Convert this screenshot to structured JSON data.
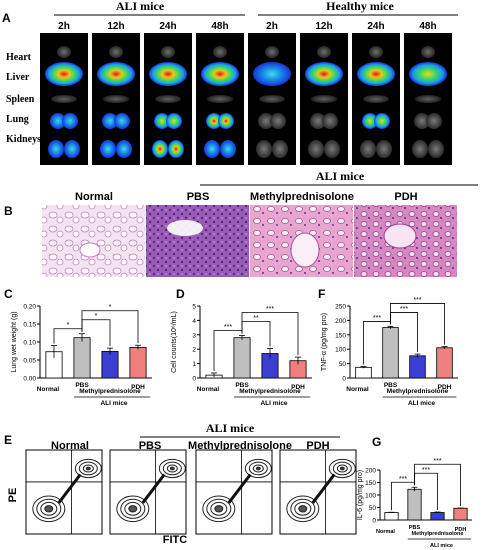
{
  "panel_a": {
    "letter": "A",
    "group_ali": "ALI mice",
    "group_healthy": "Healthy mice",
    "times": [
      "2h",
      "12h",
      "24h",
      "48h",
      "2h",
      "12h",
      "24h",
      "48h"
    ],
    "organs": [
      "Heart",
      "Liver",
      "Spleen",
      "Lung",
      "Kidneys"
    ]
  },
  "panel_b": {
    "letter": "B",
    "labels": [
      "Normal",
      "PBS",
      "Methylprednisolone",
      "PDH"
    ],
    "group": "ALI mice"
  },
  "panel_e": {
    "letter": "E",
    "title": "ALI mice",
    "labels": [
      "Normal",
      "PBS",
      "Methylprednisolone",
      "PDH"
    ],
    "y_axis": "PE",
    "x_axis": "FITC",
    "quadrant_values": [
      "",
      "",
      "",
      ""
    ]
  },
  "chart_data": [
    {
      "panel": "C",
      "type": "bar",
      "categories": [
        "Normal",
        "PBS",
        "Methylprednisolone",
        "PDH"
      ],
      "values": [
        0.073,
        0.112,
        0.074,
        0.085
      ],
      "errors": [
        0.017,
        0.011,
        0.009,
        0.006
      ],
      "colors": [
        "#ffffff",
        "#bfbfbf",
        "#3b3fd1",
        "#f08080"
      ],
      "ylabel": "Lung wet weight (g)",
      "ylim": [
        0,
        0.2
      ],
      "yticks": [
        "0.00",
        "0.05",
        "0.10",
        "0.15",
        "0.20"
      ],
      "group_label": "ALI mice",
      "significance": [
        [
          "Normal",
          "PBS",
          "*"
        ],
        [
          "PBS",
          "Methylprednisolone",
          "*"
        ],
        [
          "PBS",
          "PDH",
          "*"
        ]
      ]
    },
    {
      "panel": "D",
      "type": "bar",
      "categories": [
        "Normal",
        "PBS",
        "Methylprednisolone",
        "PDH"
      ],
      "values": [
        0.2,
        2.8,
        1.7,
        1.2
      ],
      "errors": [
        0.15,
        0.15,
        0.35,
        0.25
      ],
      "colors": [
        "#ffffff",
        "#bfbfbf",
        "#3b3fd1",
        "#f08080"
      ],
      "ylabel": "Cell counts(10⁶/mL)",
      "ylim": [
        0,
        5
      ],
      "yticks": [
        "0",
        "1",
        "2",
        "3",
        "4",
        "5"
      ],
      "group_label": "ALI mice",
      "significance": [
        [
          "Normal",
          "PBS",
          "***"
        ],
        [
          "PBS",
          "Methylprednisolone",
          "**"
        ],
        [
          "PBS",
          "PDH",
          "***"
        ]
      ]
    },
    {
      "panel": "F",
      "type": "bar",
      "categories": [
        "Normal",
        "PBS",
        "Methylprednisolone",
        "PDH"
      ],
      "values": [
        37,
        175,
        77,
        105
      ],
      "errors": [
        3,
        4,
        6,
        4
      ],
      "colors": [
        "#ffffff",
        "#bfbfbf",
        "#3b3fd1",
        "#f08080"
      ],
      "ylabel": "TNF-α (pg/mg pro)",
      "ylim": [
        0,
        250
      ],
      "yticks": [
        "0",
        "50",
        "100",
        "150",
        "200",
        "250"
      ],
      "group_label": "ALI mice",
      "significance": [
        [
          "Normal",
          "PBS",
          "***"
        ],
        [
          "PBS",
          "Methylprednisolone",
          "***"
        ],
        [
          "PBS",
          "PDH",
          "***"
        ]
      ]
    },
    {
      "panel": "G",
      "type": "bar",
      "categories": [
        "Normal",
        "PBS",
        "Methylprednisolone",
        "PDH"
      ],
      "values": [
        30,
        123,
        30,
        47
      ],
      "errors": [
        1,
        8,
        2,
        1
      ],
      "colors": [
        "#ffffff",
        "#bfbfbf",
        "#3b3fd1",
        "#f08080"
      ],
      "ylabel": "IL-6 (pg/mg pro)",
      "ylim": [
        0,
        200
      ],
      "yticks": [
        "0",
        "50",
        "100",
        "150",
        "200"
      ],
      "group_label": "ALI mice",
      "significance": [
        [
          "Normal",
          "PBS",
          "***"
        ],
        [
          "PBS",
          "Methylprednisolone",
          "***"
        ],
        [
          "PBS",
          "PDH",
          "***"
        ]
      ]
    }
  ]
}
